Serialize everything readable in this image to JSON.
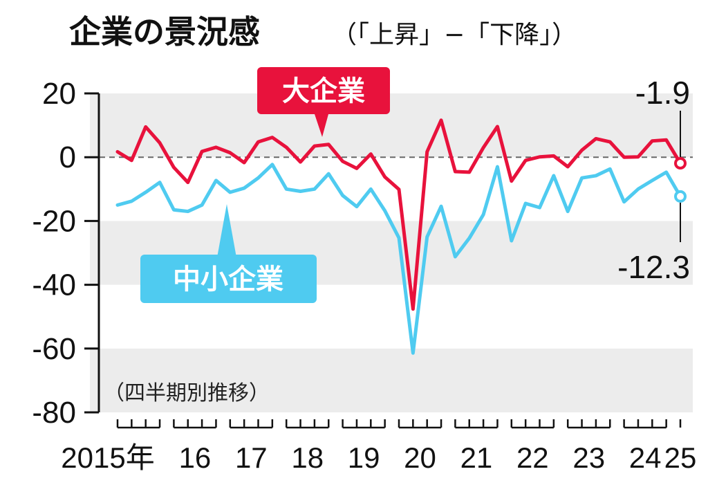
{
  "title": "企業の景況感",
  "subtitle": "（「上昇」−「下降」）",
  "note": "（四半期別推移）",
  "colors": {
    "large": "#e8123c",
    "small": "#4fcbf0",
    "band": "#ececec",
    "zero_line": "#666666",
    "axis": "#111111"
  },
  "chart_data": {
    "type": "line",
    "title": "企業の景況感",
    "subtitle": "（「上昇」−「下降」）",
    "note": "（四半期別推移）",
    "frequency": "quarterly",
    "x": [
      "2015Q1",
      "2015Q2",
      "2015Q3",
      "2015Q4",
      "2016Q1",
      "2016Q2",
      "2016Q3",
      "2016Q4",
      "2017Q1",
      "2017Q2",
      "2017Q3",
      "2017Q4",
      "2018Q1",
      "2018Q2",
      "2018Q3",
      "2018Q4",
      "2019Q1",
      "2019Q2",
      "2019Q3",
      "2019Q4",
      "2020Q1",
      "2020Q2",
      "2020Q3",
      "2020Q4",
      "2021Q1",
      "2021Q2",
      "2021Q3",
      "2021Q4",
      "2022Q1",
      "2022Q2",
      "2022Q3",
      "2022Q4",
      "2023Q1",
      "2023Q2",
      "2023Q3",
      "2023Q4",
      "2024Q1",
      "2024Q2",
      "2024Q3",
      "2024Q4",
      "2025Q1"
    ],
    "x_tick_labels": [
      "2015年",
      "16",
      "17",
      "18",
      "19",
      "20",
      "21",
      "22",
      "23",
      "24",
      "25"
    ],
    "ylim": [
      -80,
      20
    ],
    "y_ticks": [
      20,
      0,
      -20,
      -40,
      -60,
      -80
    ],
    "grid": "alternating horizontal bands; dashed zero line",
    "series": [
      {
        "name": "大企業",
        "color": "#e8123c",
        "values": [
          1.7,
          -1.0,
          9.5,
          4.5,
          -3.2,
          -7.9,
          1.8,
          3.1,
          1.4,
          -1.7,
          4.8,
          6.2,
          3.1,
          -1.5,
          3.5,
          4.0,
          -1.3,
          -3.5,
          1.0,
          -6.2,
          -10.1,
          -47.6,
          1.7,
          11.6,
          -4.5,
          -4.7,
          3.0,
          9.6,
          -7.5,
          -1.0,
          0.1,
          0.4,
          -3.0,
          2.2,
          5.8,
          4.8,
          0.0,
          0.1,
          5.1,
          5.4,
          -1.9
        ],
        "last_label": "-1.9"
      },
      {
        "name": "中小企業",
        "color": "#4fcbf0",
        "values": [
          -15.0,
          -13.8,
          -11.0,
          -7.9,
          -16.5,
          -17.0,
          -15.0,
          -7.3,
          -11.0,
          -9.7,
          -6.5,
          -2.3,
          -10.0,
          -10.7,
          -10.0,
          -5.2,
          -12.0,
          -15.5,
          -10.0,
          -16.8,
          -25.3,
          -61.4,
          -25.0,
          -15.4,
          -31.2,
          -25.4,
          -18.0,
          -3.0,
          -26.2,
          -14.5,
          -15.8,
          -5.8,
          -17.0,
          -6.5,
          -5.8,
          -3.7,
          -14.0,
          -10.0,
          -7.3,
          -4.7,
          -12.3
        ],
        "last_label": "-12.3"
      }
    ]
  }
}
